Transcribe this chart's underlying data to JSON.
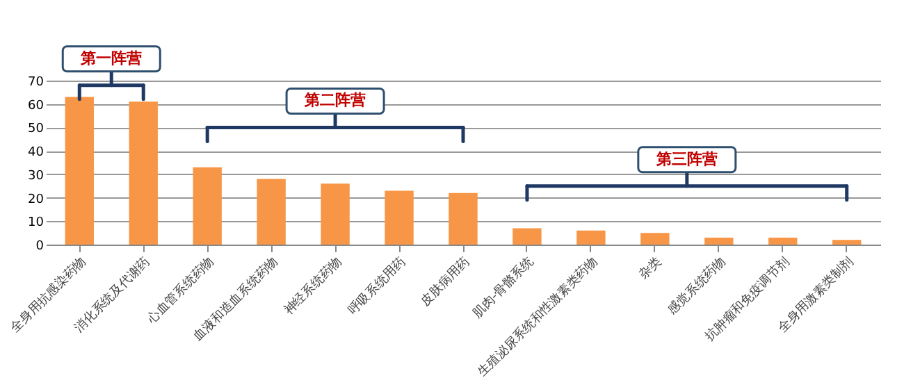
{
  "chart_data": {
    "type": "bar",
    "categories": [
      "全身用抗感染药物",
      "消化系统及代谢药",
      "心血管系统药物",
      "血液和造血系统药物",
      "神经系统药物",
      "呼吸系统用药",
      "皮肤病用药",
      "肌肉-骨骼系统",
      "生殖泌尿系统和性激素类药物",
      "杂类",
      "感觉系统药物",
      "抗肿瘤和免疫调节剂",
      "全身用激素类制剂"
    ],
    "values": [
      63,
      61,
      33,
      28,
      26,
      23,
      22,
      7,
      6,
      5,
      3,
      3,
      2
    ],
    "color": "#f79646",
    "ylim": [
      0,
      70
    ],
    "yticks": [
      0,
      10,
      20,
      30,
      40,
      50,
      60,
      70
    ],
    "grid": "y",
    "annotations": [
      "第一阵营",
      "第二阵营",
      "第三阵营"
    ]
  }
}
